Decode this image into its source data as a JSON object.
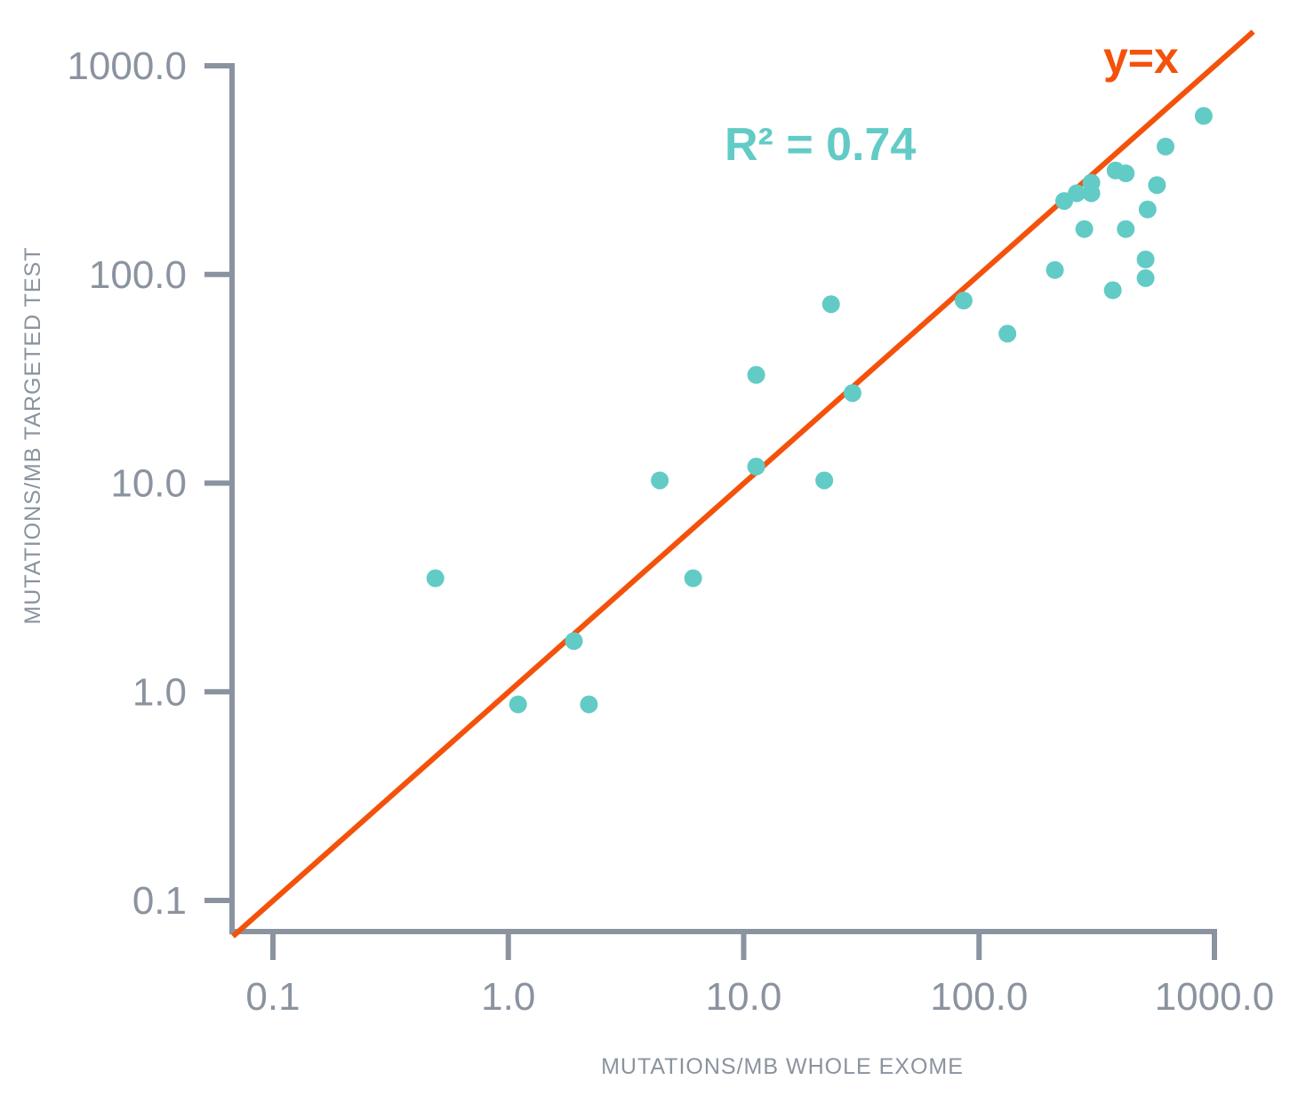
{
  "chart_data": {
    "type": "scatter",
    "xlabel": "MUTATIONS/MB WHOLE EXOME",
    "ylabel": "MUTATIONS/MB TARGETED TEST",
    "xscale": "log",
    "yscale": "log",
    "xlim": [
      0.066,
      1000
    ],
    "ylim": [
      0.068,
      1000
    ],
    "xticks": [
      0.1,
      1.0,
      10.0,
      100.0,
      1000.0
    ],
    "yticks": [
      0.1,
      1.0,
      10.0,
      100.0,
      1000.0
    ],
    "xtick_labels": [
      "0.1",
      "1.0",
      "10.0",
      "100.0",
      "1000.0"
    ],
    "ytick_labels": [
      "0.1",
      "1.0",
      "10.0",
      "100.0",
      "1000.0"
    ],
    "grid": false,
    "annotations": {
      "r_squared": "R² = 0.74",
      "identity_line": "y=x"
    },
    "identity_line": {
      "from": [
        0.07,
        0.07
      ],
      "to": [
        1500,
        1500
      ]
    },
    "points": [
      {
        "x": 0.49,
        "y": 3.5
      },
      {
        "x": 1.1,
        "y": 0.87
      },
      {
        "x": 1.9,
        "y": 1.75
      },
      {
        "x": 2.2,
        "y": 0.87
      },
      {
        "x": 4.4,
        "y": 10.3
      },
      {
        "x": 6.1,
        "y": 3.5
      },
      {
        "x": 11.3,
        "y": 33
      },
      {
        "x": 11.3,
        "y": 12
      },
      {
        "x": 22,
        "y": 10.3
      },
      {
        "x": 23.5,
        "y": 72
      },
      {
        "x": 29,
        "y": 27
      },
      {
        "x": 86,
        "y": 75
      },
      {
        "x": 132,
        "y": 52
      },
      {
        "x": 210,
        "y": 105
      },
      {
        "x": 230,
        "y": 225
      },
      {
        "x": 260,
        "y": 245
      },
      {
        "x": 280,
        "y": 165
      },
      {
        "x": 300,
        "y": 275
      },
      {
        "x": 300,
        "y": 245
      },
      {
        "x": 370,
        "y": 84
      },
      {
        "x": 380,
        "y": 315
      },
      {
        "x": 420,
        "y": 305
      },
      {
        "x": 420,
        "y": 165
      },
      {
        "x": 510,
        "y": 118
      },
      {
        "x": 510,
        "y": 96
      },
      {
        "x": 520,
        "y": 205
      },
      {
        "x": 570,
        "y": 268
      },
      {
        "x": 620,
        "y": 410
      },
      {
        "x": 900,
        "y": 575
      }
    ]
  },
  "colors": {
    "axis": "#8a939f",
    "point": "#62cbc6",
    "identity_line": "#f4510b"
  }
}
